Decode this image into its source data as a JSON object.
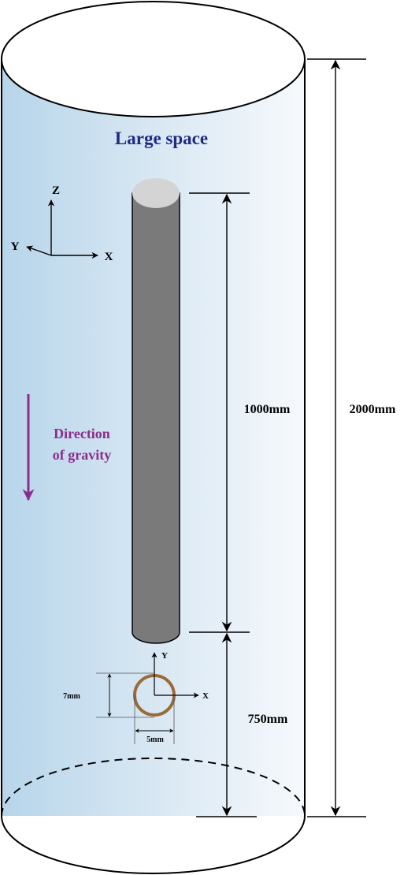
{
  "title": "Large space",
  "axes_main": {
    "z": "Z",
    "y": "Y",
    "x": "X"
  },
  "gravity": {
    "line1": "Direction",
    "line2": "of gravity"
  },
  "dimensions": {
    "total_height": "2000mm",
    "rod_length": "1000mm",
    "rod_to_bottom": "750mm",
    "section_height": "7mm",
    "section_width": "5mm"
  },
  "axes_section": {
    "y": "Y",
    "x": "X"
  },
  "colors": {
    "cylinder_left": "#b7d5ea",
    "cylinder_right": "#f6f9fc",
    "rod_body": "#7a7a7a",
    "rod_cap": "#d4d4d4",
    "title": "#1f2a80",
    "gravity": "#8c2c8c",
    "ring": "#9a6a3a"
  }
}
